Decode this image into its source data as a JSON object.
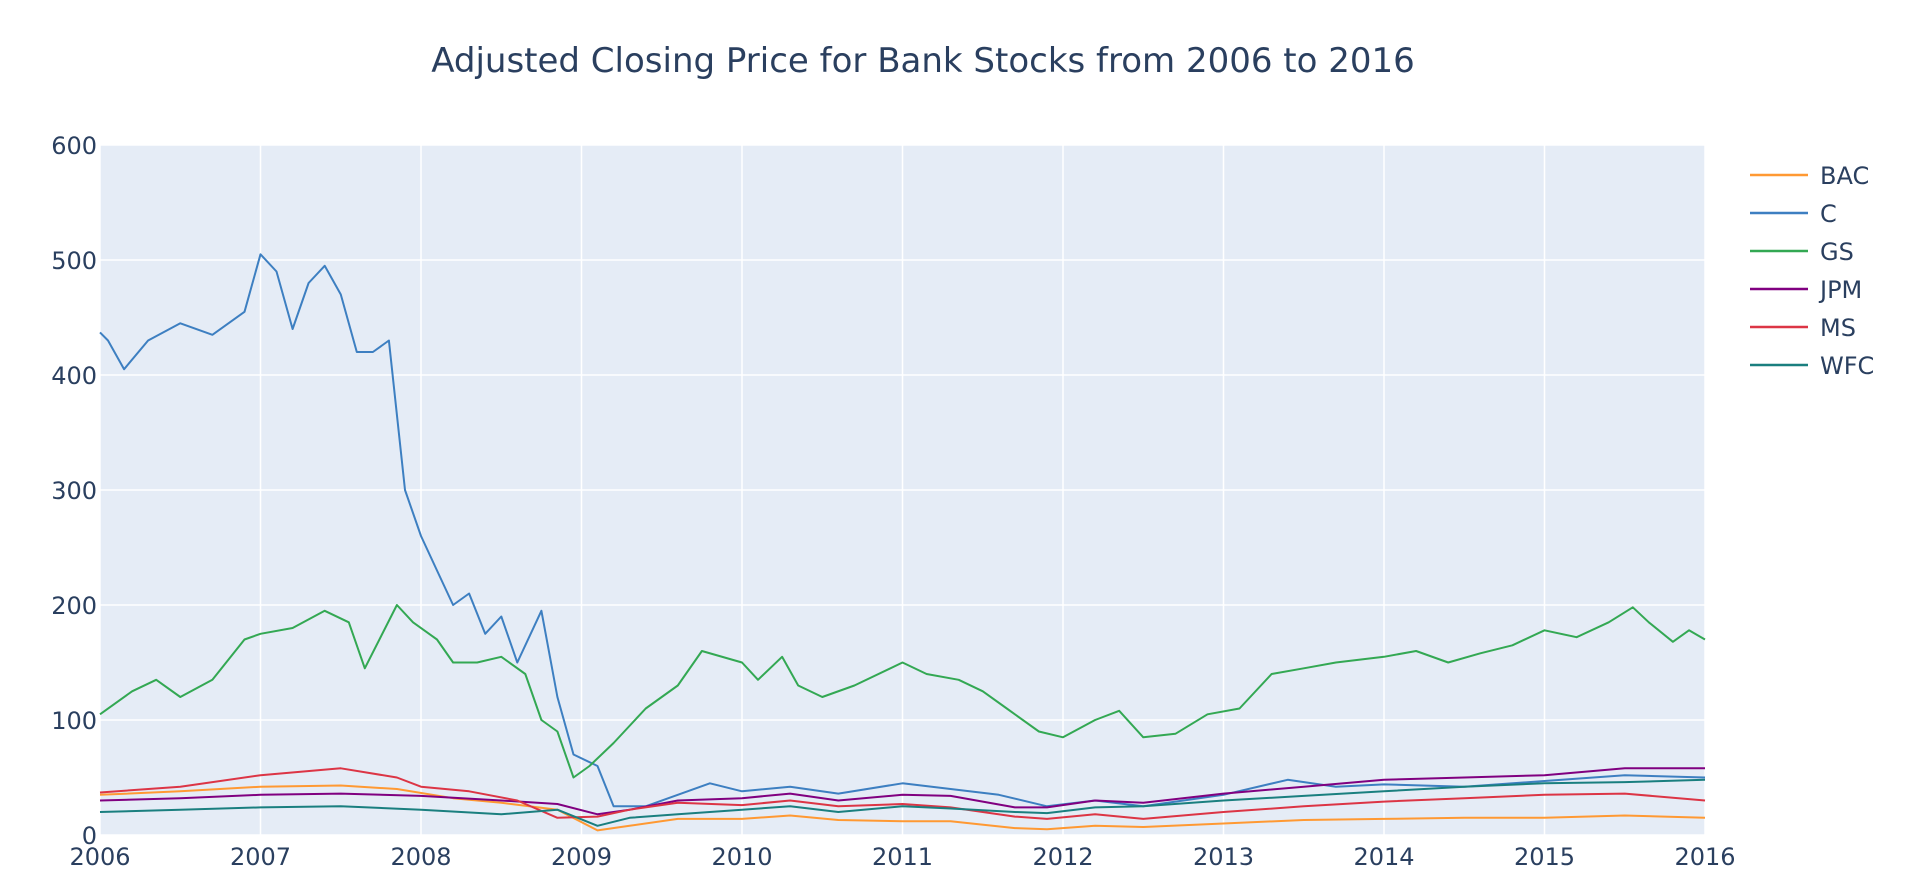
{
  "chart_data": {
    "type": "line",
    "title": "Adjusted Closing Price for Bank Stocks from 2006 to 2016",
    "xlabel": "",
    "ylabel": "",
    "xlim": [
      2006,
      2016
    ],
    "ylim": [
      0,
      600
    ],
    "x_ticks": [
      "2006",
      "2007",
      "2008",
      "2009",
      "2010",
      "2011",
      "2012",
      "2013",
      "2014",
      "2015",
      "2016"
    ],
    "y_ticks": [
      "0",
      "100",
      "200",
      "300",
      "400",
      "500",
      "600"
    ],
    "grid": true,
    "legend_position": "top-right",
    "background": "#e5ecf6",
    "series": [
      {
        "name": "BAC",
        "color": "#ff9933",
        "x": [
          2006.0,
          2006.5,
          2007.0,
          2007.5,
          2007.85,
          2008.2,
          2008.5,
          2008.85,
          2009.1,
          2009.3,
          2009.6,
          2010.0,
          2010.3,
          2010.6,
          2011.0,
          2011.3,
          2011.7,
          2011.9,
          2012.2,
          2012.5,
          2013.0,
          2013.5,
          2014.0,
          2014.5,
          2015.0,
          2015.5,
          2016.0
        ],
        "y": [
          35,
          38,
          42,
          43,
          40,
          32,
          28,
          22,
          4,
          8,
          14,
          14,
          17,
          13,
          12,
          12,
          6,
          5,
          8,
          7,
          10,
          13,
          14,
          15,
          15,
          17,
          15
        ]
      },
      {
        "name": "C",
        "color": "#3d7fc1",
        "x": [
          2006.0,
          2006.05,
          2006.15,
          2006.3,
          2006.5,
          2006.7,
          2006.9,
          2007.0,
          2007.1,
          2007.2,
          2007.3,
          2007.4,
          2007.5,
          2007.6,
          2007.7,
          2007.8,
          2007.9,
          2008.0,
          2008.1,
          2008.2,
          2008.3,
          2008.4,
          2008.5,
          2008.6,
          2008.75,
          2008.85,
          2008.95,
          2009.1,
          2009.2,
          2009.4,
          2009.6,
          2009.8,
          2010.0,
          2010.3,
          2010.6,
          2011.0,
          2011.3,
          2011.6,
          2011.9,
          2012.2,
          2012.5,
          2013.0,
          2013.4,
          2013.7,
          2014.0,
          2014.5,
          2015.0,
          2015.5,
          2016.0
        ],
        "y": [
          437,
          430,
          405,
          430,
          445,
          435,
          455,
          505,
          490,
          440,
          480,
          495,
          470,
          420,
          420,
          430,
          300,
          260,
          230,
          200,
          210,
          175,
          190,
          150,
          195,
          120,
          70,
          60,
          25,
          25,
          35,
          45,
          38,
          42,
          36,
          45,
          40,
          35,
          25,
          30,
          25,
          35,
          48,
          42,
          44,
          42,
          47,
          52,
          50
        ]
      },
      {
        "name": "GS",
        "color": "#33a853",
        "x": [
          2006.0,
          2006.2,
          2006.35,
          2006.5,
          2006.7,
          2006.9,
          2007.0,
          2007.2,
          2007.4,
          2007.55,
          2007.65,
          2007.85,
          2007.95,
          2008.1,
          2008.2,
          2008.35,
          2008.5,
          2008.65,
          2008.75,
          2008.85,
          2008.95,
          2009.05,
          2009.2,
          2009.4,
          2009.6,
          2009.75,
          2010.0,
          2010.1,
          2010.25,
          2010.35,
          2010.5,
          2010.7,
          2011.0,
          2011.15,
          2011.35,
          2011.5,
          2011.65,
          2011.85,
          2012.0,
          2012.2,
          2012.35,
          2012.5,
          2012.7,
          2012.9,
          2013.1,
          2013.3,
          2013.5,
          2013.7,
          2014.0,
          2014.2,
          2014.4,
          2014.6,
          2014.8,
          2015.0,
          2015.2,
          2015.4,
          2015.55,
          2015.65,
          2015.8,
          2015.9,
          2016.0
        ],
        "y": [
          105,
          125,
          135,
          120,
          135,
          170,
          175,
          180,
          195,
          185,
          145,
          200,
          185,
          170,
          150,
          150,
          155,
          140,
          100,
          90,
          50,
          60,
          80,
          110,
          130,
          160,
          150,
          135,
          155,
          130,
          120,
          130,
          150,
          140,
          135,
          125,
          110,
          90,
          85,
          100,
          108,
          85,
          88,
          105,
          110,
          140,
          145,
          150,
          155,
          160,
          150,
          158,
          165,
          178,
          172,
          185,
          198,
          185,
          168,
          178,
          170
        ]
      },
      {
        "name": "JPM",
        "color": "#800080",
        "x": [
          2006.0,
          2006.5,
          2007.0,
          2007.5,
          2008.0,
          2008.5,
          2008.85,
          2009.1,
          2009.3,
          2009.6,
          2010.0,
          2010.3,
          2010.6,
          2011.0,
          2011.3,
          2011.7,
          2011.9,
          2012.2,
          2012.5,
          2013.0,
          2013.5,
          2014.0,
          2014.5,
          2015.0,
          2015.5,
          2016.0
        ],
        "y": [
          30,
          32,
          35,
          36,
          34,
          30,
          27,
          18,
          22,
          30,
          32,
          36,
          30,
          35,
          34,
          24,
          24,
          30,
          28,
          36,
          42,
          48,
          50,
          52,
          58,
          58
        ]
      },
      {
        "name": "MS",
        "color": "#dc3545",
        "x": [
          2006.0,
          2006.5,
          2007.0,
          2007.5,
          2007.85,
          2008.0,
          2008.3,
          2008.6,
          2008.85,
          2009.1,
          2009.3,
          2009.6,
          2010.0,
          2010.3,
          2010.6,
          2011.0,
          2011.3,
          2011.7,
          2011.9,
          2012.2,
          2012.5,
          2013.0,
          2013.5,
          2014.0,
          2014.5,
          2015.0,
          2015.5,
          2016.0
        ],
        "y": [
          37,
          42,
          52,
          58,
          50,
          42,
          38,
          30,
          15,
          16,
          22,
          28,
          26,
          30,
          25,
          27,
          24,
          16,
          14,
          18,
          14,
          20,
          25,
          29,
          32,
          35,
          36,
          30
        ]
      },
      {
        "name": "WFC",
        "color": "#1a7f7f",
        "x": [
          2006.0,
          2006.5,
          2007.0,
          2007.5,
          2008.0,
          2008.5,
          2008.85,
          2009.1,
          2009.3,
          2009.6,
          2010.0,
          2010.3,
          2010.6,
          2011.0,
          2011.3,
          2011.7,
          2011.9,
          2012.2,
          2012.5,
          2013.0,
          2013.5,
          2014.0,
          2014.5,
          2015.0,
          2015.5,
          2016.0
        ],
        "y": [
          20,
          22,
          24,
          25,
          22,
          18,
          22,
          8,
          15,
          18,
          22,
          25,
          20,
          25,
          23,
          20,
          19,
          24,
          25,
          30,
          34,
          38,
          42,
          45,
          46,
          48
        ]
      }
    ]
  }
}
